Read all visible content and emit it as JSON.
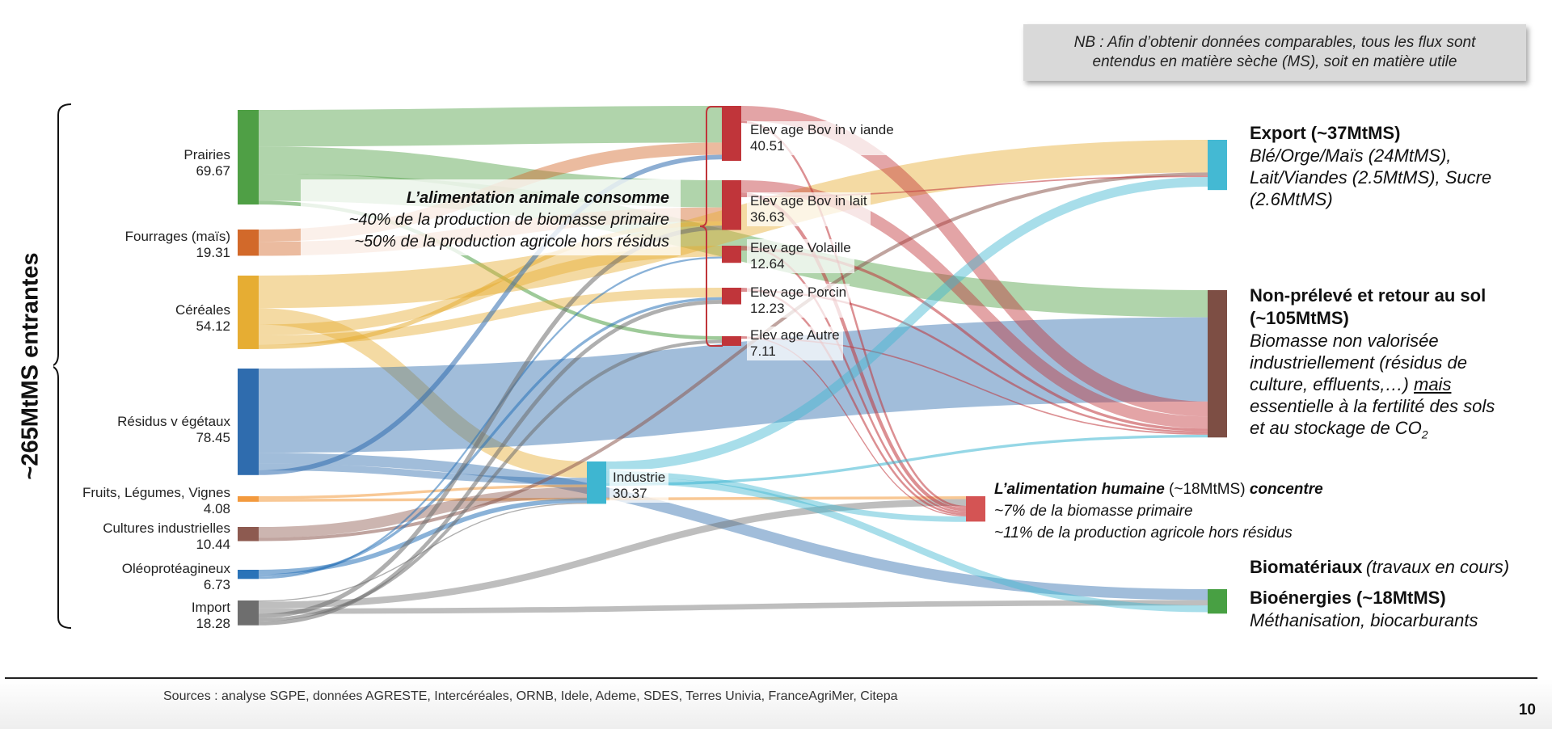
{
  "colors": {
    "prairies": "#4f9f45",
    "fourrages": "#d2692a",
    "cereales": "#e6ad33",
    "residus": "#2f6cae",
    "fruits": "#f39a3e",
    "cultures": "#8d5a50",
    "oleo": "#2a73b8",
    "import": "#6e6e6e",
    "elevage": "#c0353a",
    "industrie": "#3eb6d1",
    "export": "#44b9d3",
    "nonpreleve": "#7d4e44",
    "humaine": "#d45454",
    "bioenergie": "#48a043"
  },
  "side_label": "~265MtMS entrantes",
  "note": {
    "line1": "NB : Afin d’obtenir données comparables, tous les flux sont",
    "line2": "entendus en matière sèche (MS), soit en matière utile"
  },
  "callout": {
    "title": "L’alimentation animale consomme",
    "line1": "~40% de la production de biomasse primaire",
    "line2": "~50% de la production agricole hors résidus"
  },
  "destinations": {
    "export": {
      "title": "Export (~37MtMS)",
      "line1": "Blé/Orge/Maïs (24MtMS),",
      "line2": "Lait/Viandes (2.5MtMS), Sucre",
      "line3": "(2.6MtMS)"
    },
    "nonpreleve": {
      "title1": "Non-prélevé et retour au sol",
      "title2": "(~105MtMS)",
      "line1": "Biomasse non valorisée",
      "line2": "industriellement (résidus de",
      "line3": "culture, effluents,…)",
      "mais": "mais",
      "line4": "essentielle à la fertilité des sols",
      "line5": "et au stockage de CO",
      "co2_sub": "2"
    },
    "humaine": {
      "title_a": "L’alimentation humaine",
      "title_b": "(~18MtMS)",
      "title_c": "concentre",
      "line1": "~7% de la biomasse primaire",
      "line2": "~11% de la production agricole hors résidus"
    },
    "biomateriaux": {
      "title": "Biomatériaux",
      "sub": "(travaux en cours)"
    },
    "bioenergies": {
      "title": "Bioénergies (~18MtMS)",
      "sub": "Méthanisation, biocarburants"
    }
  },
  "footer": {
    "sources": "Sources : analyse SGPE, données AGRESTE, Intercéréales, ORNB, Idele, Ademe, SDES, Terres Univia, FranceAgriMer, Citepa",
    "page": "10"
  },
  "chart_data": {
    "type": "sankey",
    "unit": "MtMS",
    "sources": [
      {
        "id": "prairies",
        "name": "Prairies",
        "value": "69.67"
      },
      {
        "id": "fourrages",
        "name": "Fourrages (maïs)",
        "value": "19.31"
      },
      {
        "id": "cereales",
        "name": "Céréales",
        "value": "54.12"
      },
      {
        "id": "residus",
        "name": "Résidus v égétaux",
        "value": "78.45"
      },
      {
        "id": "fruits",
        "name": "Fruits, Légumes, Vignes",
        "value": "4.08"
      },
      {
        "id": "cultures",
        "name": "Cultures industrielles",
        "value": "10.44"
      },
      {
        "id": "oleo",
        "name": "Oléoprotéagineux",
        "value": "6.73"
      },
      {
        "id": "import",
        "name": "Import",
        "value": "18.28"
      }
    ],
    "intermediates": [
      {
        "id": "bovin_viande",
        "name": "Elev age Bov in v iande",
        "value": "40.51"
      },
      {
        "id": "bovin_lait",
        "name": "Elev age Bov in lait",
        "value": "36.63"
      },
      {
        "id": "volaille",
        "name": "Elev age Volaille",
        "value": "12.64"
      },
      {
        "id": "porcin",
        "name": "Elev age Porcin",
        "value": "12.23"
      },
      {
        "id": "autre",
        "name": "Elev age Autre",
        "value": "7.11"
      },
      {
        "id": "industrie",
        "name": "Industrie",
        "value": "30.37"
      }
    ],
    "destinations": [
      {
        "id": "export",
        "name": "Export",
        "value": 37
      },
      {
        "id": "nonpreleve",
        "name": "Non-prélevé et retour au sol",
        "value": 105
      },
      {
        "id": "humaine",
        "name": "Alimentation humaine",
        "value": 18
      },
      {
        "id": "bioenergie",
        "name": "Bioénergies",
        "value": 18
      }
    ],
    "links": [
      {
        "s": "prairies",
        "t": "bovin_viande",
        "v": 27
      },
      {
        "s": "prairies",
        "t": "bovin_lait",
        "v": 20
      },
      {
        "s": "prairies",
        "t": "nonpreleve",
        "v": 20
      },
      {
        "s": "prairies",
        "t": "autre",
        "v": 2.67
      },
      {
        "s": "fourrages",
        "t": "bovin_viande",
        "v": 9
      },
      {
        "s": "fourrages",
        "t": "bovin_lait",
        "v": 10.31
      },
      {
        "s": "cereales",
        "t": "export",
        "v": 24
      },
      {
        "s": "cereales",
        "t": "industrie",
        "v": 12
      },
      {
        "s": "cereales",
        "t": "volaille",
        "v": 8
      },
      {
        "s": "cereales",
        "t": "porcin",
        "v": 7
      },
      {
        "s": "cereales",
        "t": "bovin_lait",
        "v": 3.12
      },
      {
        "s": "residus",
        "t": "nonpreleve",
        "v": 62
      },
      {
        "s": "residus",
        "t": "bioenergie",
        "v": 8
      },
      {
        "s": "residus",
        "t": "industrie",
        "v": 5
      },
      {
        "s": "residus",
        "t": "bovin_viande",
        "v": 3.45
      },
      {
        "s": "fruits",
        "t": "industrie",
        "v": 2
      },
      {
        "s": "fruits",
        "t": "humaine",
        "v": 2.08
      },
      {
        "s": "cultures",
        "t": "industrie",
        "v": 8
      },
      {
        "s": "cultures",
        "t": "export",
        "v": 2.44
      },
      {
        "s": "oleo",
        "t": "industrie",
        "v": 3.37
      },
      {
        "s": "oleo",
        "t": "porcin",
        "v": 2
      },
      {
        "s": "oleo",
        "t": "volaille",
        "v": 1.36
      },
      {
        "s": "import",
        "t": "industrie",
        "v": 0.8
      },
      {
        "s": "import",
        "t": "humaine",
        "v": 5
      },
      {
        "s": "import",
        "t": "bioenergie",
        "v": 4
      },
      {
        "s": "import",
        "t": "bovin_lait",
        "v": 3.2
      },
      {
        "s": "import",
        "t": "autre",
        "v": 2.44
      },
      {
        "s": "import",
        "t": "porcin",
        "v": 2.84
      },
      {
        "s": "bovin_viande",
        "t": "nonpreleve",
        "v": 11
      },
      {
        "s": "bovin_viande",
        "t": "humaine",
        "v": 1.5
      },
      {
        "s": "bovin_lait",
        "t": "nonpreleve",
        "v": 9
      },
      {
        "s": "bovin_lait",
        "t": "humaine",
        "v": 2.5
      },
      {
        "s": "bovin_lait",
        "t": "export",
        "v": 1
      },
      {
        "s": "volaille",
        "t": "humaine",
        "v": 1.5
      },
      {
        "s": "volaille",
        "t": "nonpreleve",
        "v": 2
      },
      {
        "s": "porcin",
        "t": "humaine",
        "v": 1.5
      },
      {
        "s": "porcin",
        "t": "nonpreleve",
        "v": 1.5
      },
      {
        "s": "autre",
        "t": "humaine",
        "v": 0.6
      },
      {
        "s": "autre",
        "t": "nonpreleve",
        "v": 1
      },
      {
        "s": "industrie",
        "t": "export",
        "v": 7
      },
      {
        "s": "industrie",
        "t": "humaine",
        "v": 4
      },
      {
        "s": "industrie",
        "t": "bioenergie",
        "v": 5
      },
      {
        "s": "industrie",
        "t": "nonpreleve",
        "v": 2
      }
    ]
  }
}
